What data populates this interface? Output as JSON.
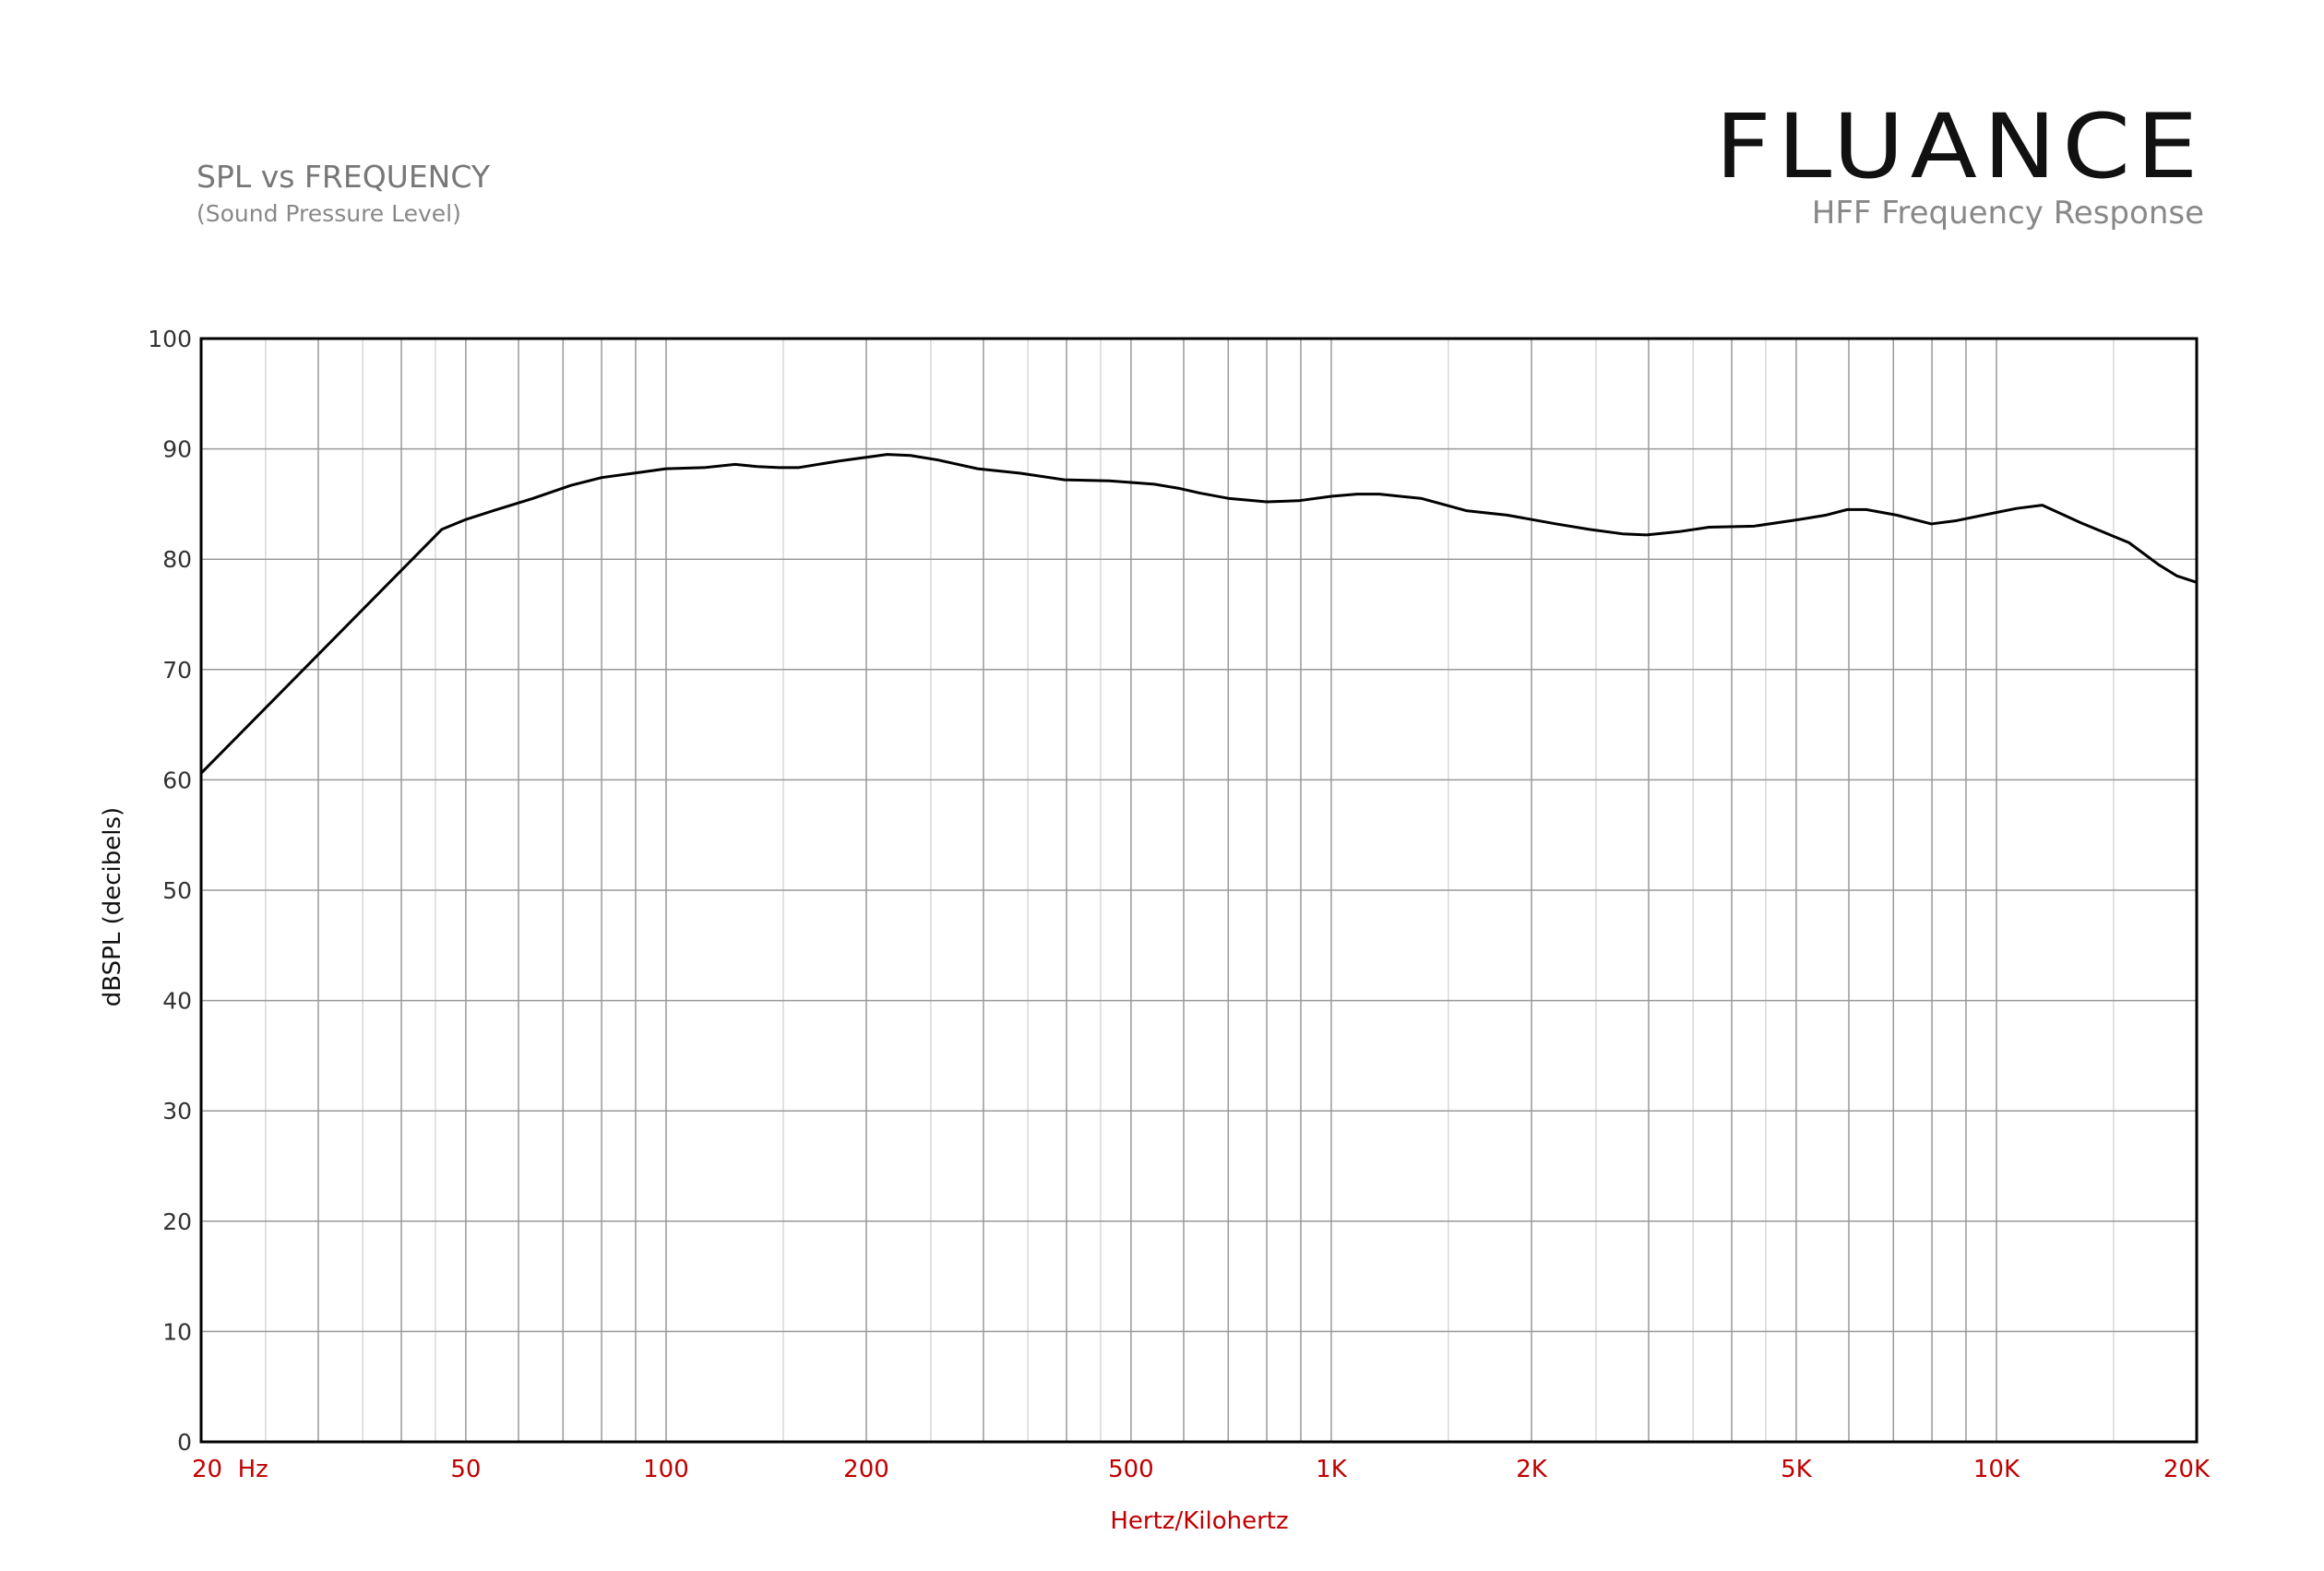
{
  "chart_data": {
    "type": "line",
    "title": "SPL vs FREQUENCY",
    "subtitle": "(Sound Pressure Level)",
    "brand": "FLUANCE",
    "brand_subtitle": "HFF Frequency Response",
    "x_label": "Hertz/Kilohertz",
    "y_label": "dBSPL (decibels)",
    "x_log": true,
    "xlim": [
      20,
      20000
    ],
    "ylim": [
      0,
      100
    ],
    "yticks": [
      0,
      10,
      20,
      30,
      40,
      50,
      60,
      70,
      80,
      90,
      100
    ],
    "xticks": [
      {
        "value": 20,
        "label": "20  Hz"
      },
      50,
      100,
      200,
      500,
      {
        "value": 1000,
        "label": "1K"
      },
      {
        "value": 2000,
        "label": "2K"
      },
      {
        "value": 5000,
        "label": "5K"
      },
      {
        "value": 10000,
        "label": "10K"
      },
      {
        "value": 20000,
        "label": "20K"
      }
    ],
    "x_grid_major": [
      30,
      40,
      60,
      70,
      80,
      90,
      300,
      400,
      600,
      700,
      800,
      900,
      3000,
      4000,
      6000,
      7000,
      8000,
      9000
    ],
    "x_grid_minor": [
      25,
      35,
      45,
      150,
      250,
      350,
      450,
      1500,
      2500,
      3500,
      4500,
      15000
    ],
    "grid": true,
    "series": [
      {
        "name": "HFF",
        "color": "#000000",
        "x": [
          20,
          46,
          50,
          55,
          63,
          72,
          80,
          92,
          100,
          114,
          127,
          137,
          148,
          158,
          182,
          215,
          233,
          256,
          294,
          340,
          397,
          464,
          542,
          593,
          634,
          703,
          800,
          893,
          1000,
          1094,
          1181,
          1368,
          1596,
          1837,
          2178,
          2444,
          2741,
          2980,
          3334,
          3698,
          4326,
          5056,
          5548,
          5968,
          6370,
          7078,
          7982,
          8715,
          9925,
          10713,
          11720,
          13396,
          15820,
          17540,
          18660,
          20000
        ],
        "values": [
          60.6,
          82.7,
          83.6,
          84.4,
          85.5,
          86.7,
          87.4,
          87.9,
          88.2,
          88.3,
          88.6,
          88.4,
          88.3,
          88.3,
          88.9,
          89.5,
          89.4,
          89.0,
          88.2,
          87.8,
          87.2,
          87.1,
          86.8,
          86.4,
          86.0,
          85.5,
          85.2,
          85.3,
          85.7,
          85.9,
          85.9,
          85.5,
          84.4,
          84.0,
          83.2,
          82.7,
          82.3,
          82.2,
          82.5,
          82.9,
          83.0,
          83.6,
          84.0,
          84.5,
          84.5,
          84.0,
          83.2,
          83.5,
          84.2,
          84.6,
          84.9,
          83.3,
          81.5,
          79.5,
          78.5,
          77.9
        ]
      }
    ]
  }
}
